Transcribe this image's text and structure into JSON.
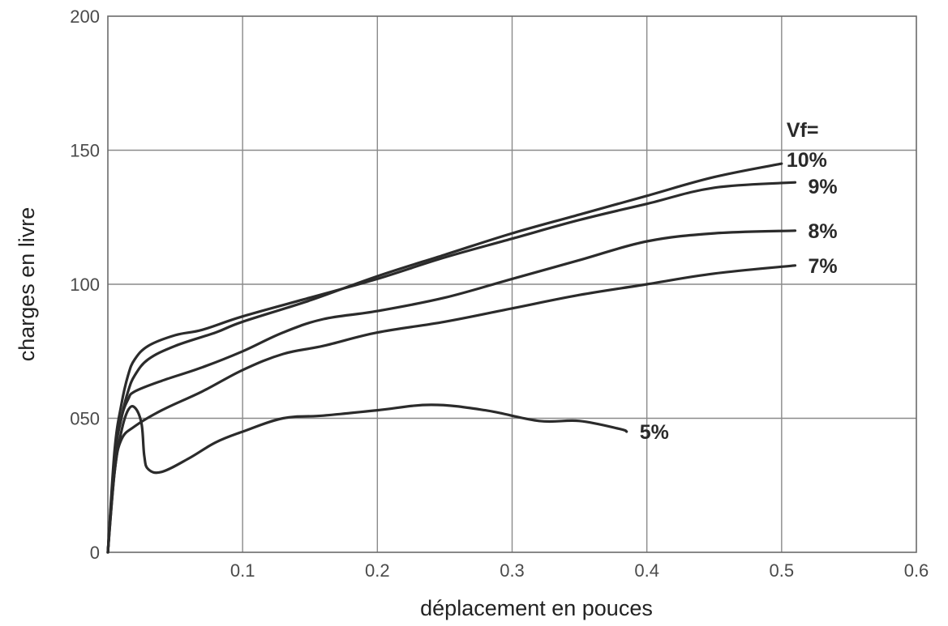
{
  "chart_data": {
    "type": "line",
    "title": "",
    "xlabel": "déplacement en pouces",
    "ylabel": "charges en livre",
    "xlim": [
      0,
      0.6
    ],
    "ylim": [
      0,
      200
    ],
    "x_ticks": [
      "0.1",
      "0.2",
      "0.3",
      "0.4",
      "0.5",
      "0.6"
    ],
    "x_tick_values": [
      0.1,
      0.2,
      0.3,
      0.4,
      0.5,
      0.6
    ],
    "y_ticks": [
      "0",
      "050",
      "100",
      "150",
      "200"
    ],
    "y_tick_values": [
      0,
      50,
      100,
      150,
      200
    ],
    "grid": true,
    "legend_header": "Vf=",
    "series": [
      {
        "name": "10%",
        "points": [
          [
            0,
            0
          ],
          [
            0.005,
            35
          ],
          [
            0.01,
            50
          ],
          [
            0.015,
            60
          ],
          [
            0.02,
            66
          ],
          [
            0.03,
            72
          ],
          [
            0.05,
            77
          ],
          [
            0.08,
            82
          ],
          [
            0.1,
            86
          ],
          [
            0.15,
            94
          ],
          [
            0.2,
            103
          ],
          [
            0.25,
            111
          ],
          [
            0.3,
            119
          ],
          [
            0.35,
            126
          ],
          [
            0.4,
            133
          ],
          [
            0.45,
            140
          ],
          [
            0.5,
            145
          ]
        ]
      },
      {
        "name": "9%",
        "points": [
          [
            0,
            0
          ],
          [
            0.005,
            38
          ],
          [
            0.01,
            55
          ],
          [
            0.015,
            66
          ],
          [
            0.02,
            72
          ],
          [
            0.03,
            77
          ],
          [
            0.05,
            81
          ],
          [
            0.07,
            83
          ],
          [
            0.1,
            88
          ],
          [
            0.15,
            95
          ],
          [
            0.2,
            102
          ],
          [
            0.25,
            110
          ],
          [
            0.3,
            117
          ],
          [
            0.35,
            124
          ],
          [
            0.4,
            130
          ],
          [
            0.45,
            136
          ],
          [
            0.51,
            138
          ]
        ]
      },
      {
        "name": "8%",
        "points": [
          [
            0,
            0
          ],
          [
            0.005,
            35
          ],
          [
            0.01,
            50
          ],
          [
            0.015,
            57
          ],
          [
            0.02,
            60
          ],
          [
            0.04,
            64
          ],
          [
            0.07,
            69
          ],
          [
            0.1,
            75
          ],
          [
            0.13,
            82
          ],
          [
            0.16,
            87
          ],
          [
            0.2,
            90
          ],
          [
            0.25,
            95
          ],
          [
            0.3,
            102
          ],
          [
            0.35,
            109
          ],
          [
            0.4,
            116
          ],
          [
            0.45,
            119
          ],
          [
            0.51,
            120
          ]
        ]
      },
      {
        "name": "7%",
        "points": [
          [
            0,
            0
          ],
          [
            0.005,
            30
          ],
          [
            0.01,
            42
          ],
          [
            0.02,
            47
          ],
          [
            0.04,
            53
          ],
          [
            0.07,
            60
          ],
          [
            0.1,
            68
          ],
          [
            0.13,
            74
          ],
          [
            0.16,
            77
          ],
          [
            0.2,
            82
          ],
          [
            0.25,
            86
          ],
          [
            0.3,
            91
          ],
          [
            0.35,
            96
          ],
          [
            0.4,
            100
          ],
          [
            0.45,
            104
          ],
          [
            0.51,
            107
          ]
        ]
      },
      {
        "name": "5%",
        "points": [
          [
            0,
            0
          ],
          [
            0.005,
            30
          ],
          [
            0.01,
            45
          ],
          [
            0.015,
            53
          ],
          [
            0.02,
            54
          ],
          [
            0.025,
            48
          ],
          [
            0.027,
            36
          ],
          [
            0.03,
            31
          ],
          [
            0.04,
            30
          ],
          [
            0.06,
            35
          ],
          [
            0.08,
            41
          ],
          [
            0.1,
            45
          ],
          [
            0.13,
            50
          ],
          [
            0.16,
            51
          ],
          [
            0.2,
            53
          ],
          [
            0.24,
            55
          ],
          [
            0.28,
            53
          ],
          [
            0.32,
            49
          ],
          [
            0.35,
            49
          ],
          [
            0.38,
            46
          ],
          [
            0.385,
            45
          ]
        ]
      }
    ]
  }
}
